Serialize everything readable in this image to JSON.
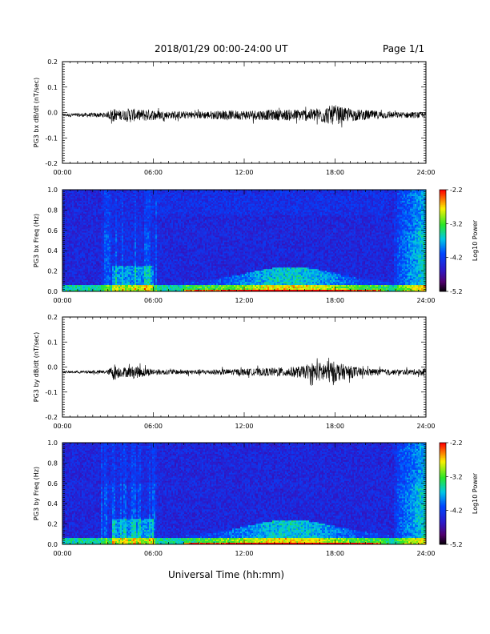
{
  "header": {
    "title": "2018/01/29  00:00-24:00 UT",
    "page": "Page 1/1"
  },
  "footer": {
    "xlabel": "Universal Time (hh:mm)"
  },
  "colors": {
    "trace": "#000000",
    "background": "#ffffff"
  },
  "chart_data": [
    {
      "type": "line",
      "ylabel": "PG3 bx dB/dt (nT/sec)",
      "ylim": [
        -0.2,
        0.2
      ],
      "yticks": [
        "0.2",
        "0.1",
        "0.0",
        "-0.1",
        "-0.2"
      ],
      "xticks": [
        "00:00",
        "06:00",
        "12:00",
        "18:00",
        "24:00"
      ],
      "xlim": [
        0,
        24
      ],
      "baseline": -0.01,
      "envelope": {
        "x": [
          0,
          3,
          3.3,
          3.6,
          4.0,
          4.5,
          5.0,
          5.5,
          6.0,
          7,
          9,
          11,
          13,
          15,
          16.5,
          17,
          17.5,
          18,
          18.5,
          19,
          20,
          22,
          24
        ],
        "amp": [
          0.006,
          0.01,
          0.03,
          0.02,
          0.02,
          0.03,
          0.02,
          0.025,
          0.02,
          0.015,
          0.015,
          0.018,
          0.02,
          0.022,
          0.025,
          0.03,
          0.035,
          0.04,
          0.03,
          0.025,
          0.02,
          0.012,
          0.012
        ]
      }
    },
    {
      "type": "heatmap",
      "ylabel": "PG3 bx Freq (Hz)",
      "ylim": [
        0.0,
        1.0
      ],
      "yticks": [
        "1.0",
        "0.8",
        "0.6",
        "0.4",
        "0.2",
        "0.0"
      ],
      "xticks": [
        "00:00",
        "06:00",
        "12:00",
        "18:00",
        "24:00"
      ],
      "xlim": [
        0,
        24
      ],
      "colorbar": {
        "label": "Log10 Power",
        "ticks": [
          "-2.2",
          "-3.2",
          "-4.2",
          "-5.2"
        ],
        "range": [
          -5.2,
          -2.2
        ]
      }
    },
    {
      "type": "line",
      "ylabel": "PG3 by dB/dt (nT/sec)",
      "ylim": [
        -0.2,
        0.2
      ],
      "yticks": [
        "0.2",
        "0.1",
        "0.0",
        "-0.1",
        "-0.2"
      ],
      "xticks": [
        "00:00",
        "06:00",
        "12:00",
        "18:00",
        "24:00"
      ],
      "xlim": [
        0,
        24
      ],
      "baseline": -0.02,
      "envelope": {
        "x": [
          0,
          3,
          3.4,
          3.8,
          4.2,
          4.8,
          5.3,
          6.0,
          7,
          9,
          11,
          13,
          15,
          16,
          16.8,
          17.3,
          17.8,
          18.3,
          19,
          20,
          22,
          23.5,
          24
        ],
        "amp": [
          0.004,
          0.008,
          0.035,
          0.02,
          0.02,
          0.025,
          0.02,
          0.012,
          0.01,
          0.01,
          0.012,
          0.015,
          0.02,
          0.025,
          0.035,
          0.045,
          0.045,
          0.035,
          0.025,
          0.015,
          0.01,
          0.012,
          0.02
        ]
      }
    },
    {
      "type": "heatmap",
      "ylabel": "PG3 by Freq (Hz)",
      "ylim": [
        0.0,
        1.0
      ],
      "yticks": [
        "1.0",
        "0.8",
        "0.6",
        "0.4",
        "0.2",
        "0.0"
      ],
      "xticks": [
        "00:00",
        "06:00",
        "12:00",
        "18:00",
        "24:00"
      ],
      "xlim": [
        0,
        24
      ],
      "colorbar": {
        "label": "Log10 Power",
        "ticks": [
          "-2.2",
          "-3.2",
          "-4.2",
          "-5.2"
        ],
        "range": [
          -5.2,
          -2.2
        ]
      }
    }
  ]
}
